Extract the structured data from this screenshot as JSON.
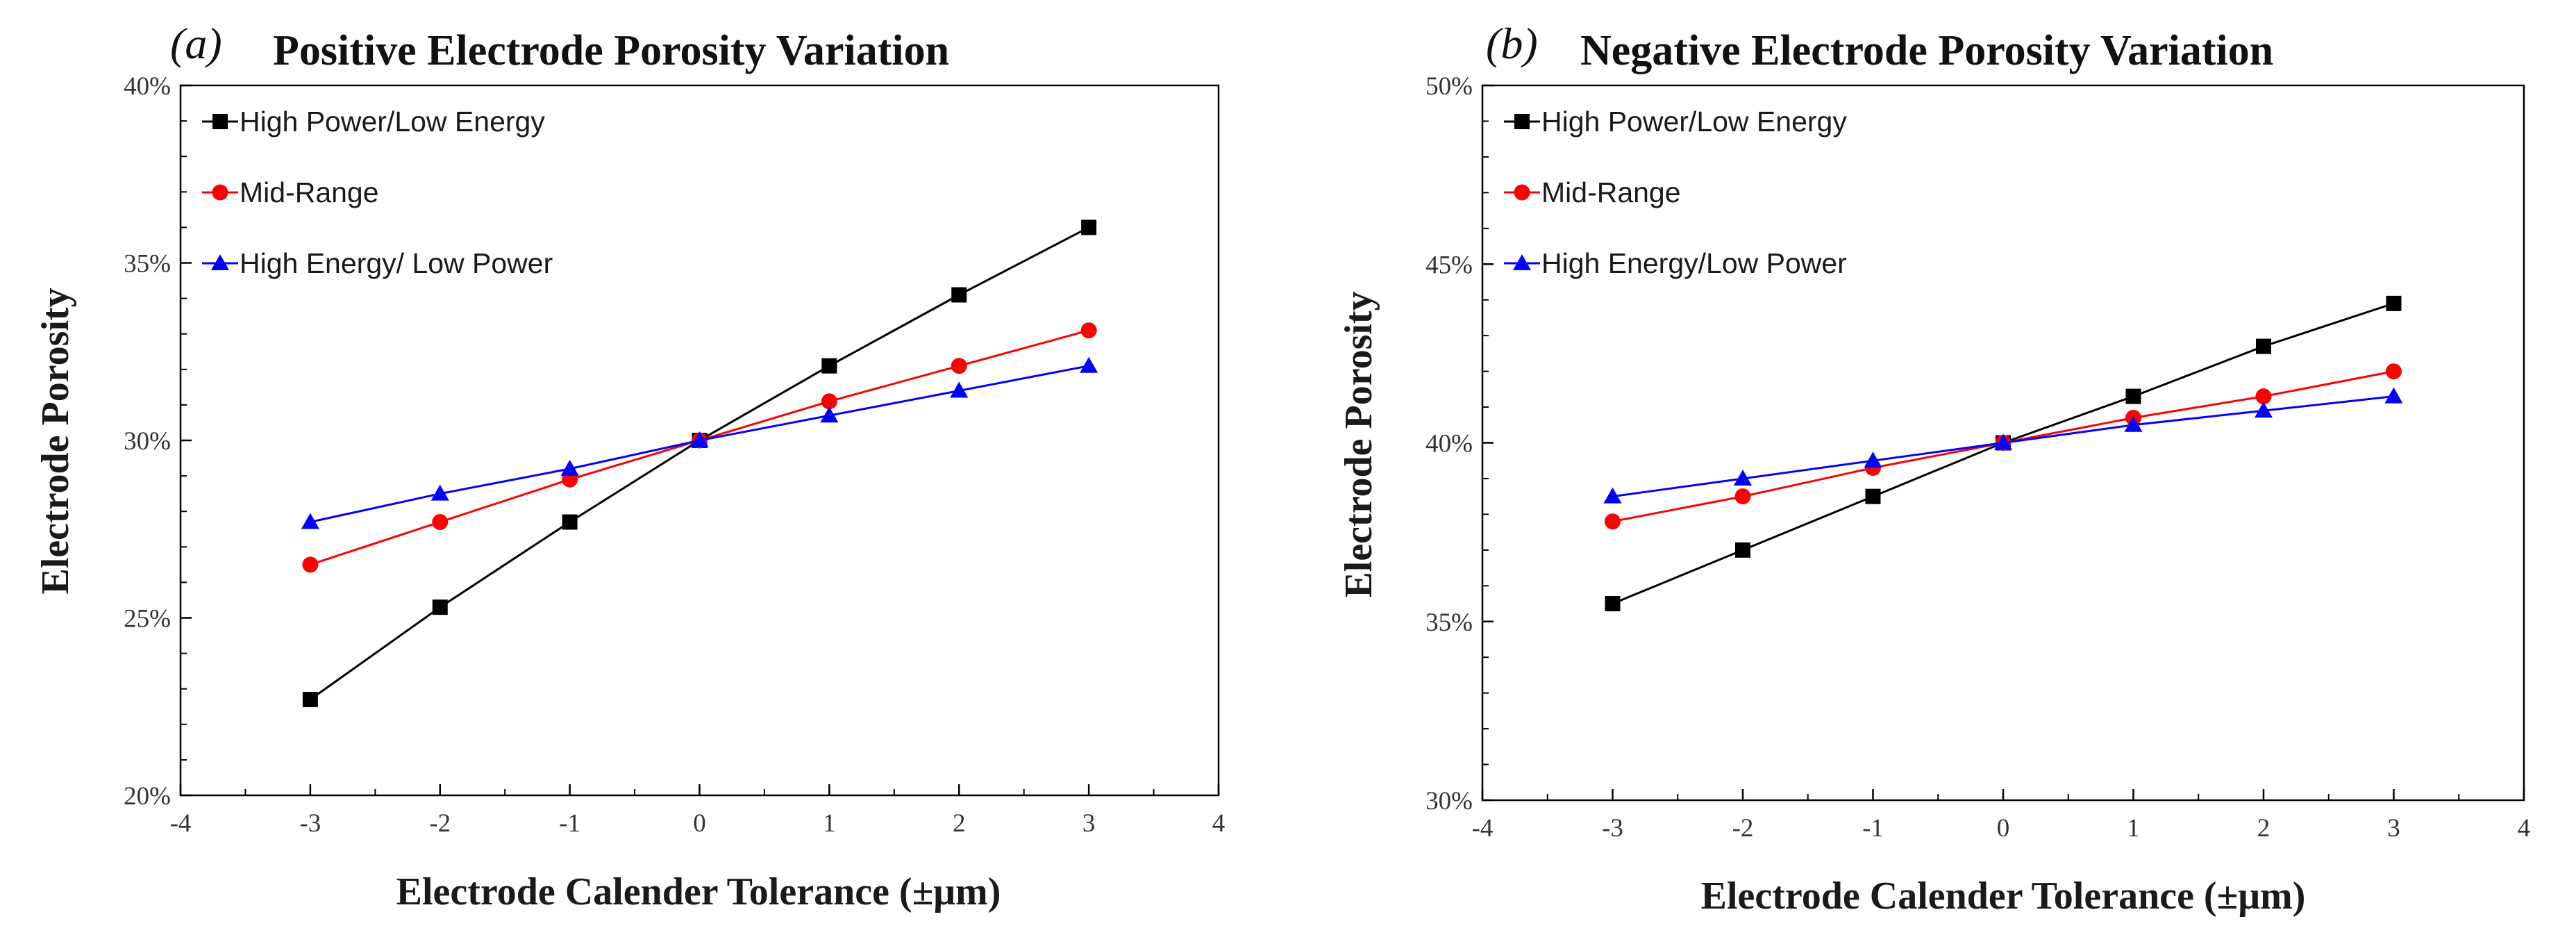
{
  "chart_data": [
    {
      "type": "line",
      "panel_label": "(a)",
      "title": "Positive Electrode Porosity Variation",
      "xlabel": "Electrode Calender Tolerance (±μm)",
      "ylabel": "Electrode Porosity",
      "xlim": [
        -4,
        4
      ],
      "ylim": [
        20,
        40
      ],
      "x_ticks": [
        -4,
        -3,
        -2,
        -1,
        0,
        1,
        2,
        3,
        4
      ],
      "y_ticks": [
        20,
        25,
        30,
        35,
        40
      ],
      "x_tick_labels": [
        "-4",
        "-3",
        "-2",
        "-1",
        "0",
        "1",
        "2",
        "3",
        "4"
      ],
      "y_tick_labels": [
        "20%",
        "25%",
        "30%",
        "35%",
        "40%"
      ],
      "grid": false,
      "legend_position": "top-left",
      "x": [
        -3,
        -2,
        -1,
        0,
        1,
        2,
        3
      ],
      "series": [
        {
          "name": "High Power/Low Energy",
          "color": "#000000",
          "marker": "square",
          "values": [
            22.7,
            25.3,
            27.7,
            30.0,
            32.1,
            34.1,
            36.0
          ]
        },
        {
          "name": "Mid-Range",
          "color": "#ff0000",
          "marker": "circle",
          "values": [
            26.5,
            27.7,
            28.9,
            30.0,
            31.1,
            32.1,
            33.1
          ]
        },
        {
          "name": "High Energy/ Low Power",
          "color": "#0000ff",
          "marker": "triangle",
          "values": [
            27.7,
            28.5,
            29.2,
            30.0,
            30.7,
            31.4,
            32.1
          ]
        }
      ]
    },
    {
      "type": "line",
      "panel_label": "(b)",
      "title": "Negative Electrode Porosity Variation",
      "xlabel": "Electrode Calender Tolerance (±μm)",
      "ylabel": "Electrode Porosity",
      "xlim": [
        -4,
        4
      ],
      "ylim": [
        30,
        50
      ],
      "x_ticks": [
        -4,
        -3,
        -2,
        -1,
        0,
        1,
        2,
        3,
        4
      ],
      "y_ticks": [
        30,
        35,
        40,
        45,
        50
      ],
      "x_tick_labels": [
        "-4",
        "-3",
        "-2",
        "-1",
        "0",
        "1",
        "2",
        "3",
        "4"
      ],
      "y_tick_labels": [
        "30%",
        "35%",
        "40%",
        "45%",
        "50%"
      ],
      "grid": false,
      "legend_position": "top-left",
      "x": [
        -3,
        -2,
        -1,
        0,
        1,
        2,
        3
      ],
      "series": [
        {
          "name": "High Power/Low Energy",
          "color": "#000000",
          "marker": "square",
          "values": [
            35.5,
            37.0,
            38.5,
            40.0,
            41.3,
            42.7,
            43.9
          ]
        },
        {
          "name": "Mid-Range",
          "color": "#ff0000",
          "marker": "circle",
          "values": [
            37.8,
            38.5,
            39.3,
            40.0,
            40.7,
            41.3,
            42.0
          ]
        },
        {
          "name": "High Energy/Low Power",
          "color": "#0000ff",
          "marker": "triangle",
          "values": [
            38.5,
            39.0,
            39.5,
            40.0,
            40.5,
            40.9,
            41.3
          ]
        }
      ]
    }
  ]
}
